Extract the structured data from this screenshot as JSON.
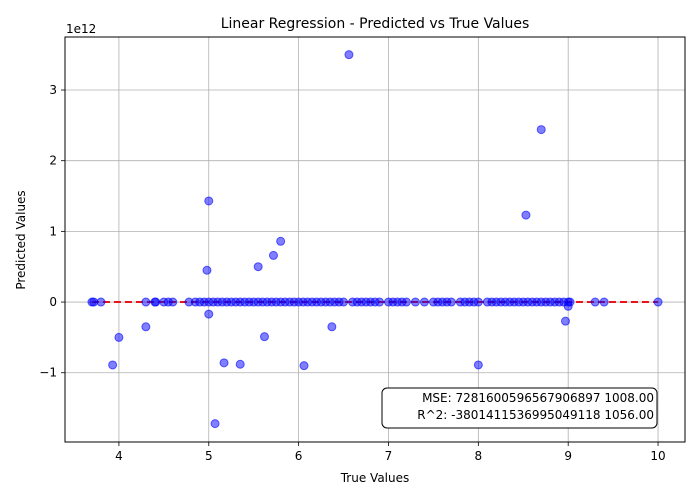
{
  "chart_data": {
    "type": "scatter",
    "title": "Linear Regression - Predicted vs True Values",
    "xlabel": "True Values",
    "ylabel": "Predicted Values",
    "y_offset_label": "1e12",
    "xlim": [
      3.4,
      10.3
    ],
    "ylim": [
      -1.98,
      3.75
    ],
    "x_ticks": [
      4,
      5,
      6,
      7,
      8,
      9,
      10
    ],
    "x_tick_labels": [
      "4",
      "5",
      "6",
      "7",
      "8",
      "9",
      "10"
    ],
    "y_ticks": [
      -1,
      0,
      1,
      2,
      3
    ],
    "y_tick_labels": [
      "−1",
      "0",
      "1",
      "2",
      "3"
    ],
    "grid": true,
    "point_color": "#0000ff",
    "reference_line_color": "#e8141b",
    "reference_line": {
      "x": [
        3.7,
        10.0
      ],
      "y": [
        0,
        0
      ]
    },
    "series": [
      {
        "points_outliers": [
          [
            6.56,
            3.5
          ],
          [
            8.7,
            2.44
          ],
          [
            8.53,
            1.23
          ],
          [
            5.0,
            1.43
          ],
          [
            5.8,
            0.86
          ],
          [
            5.72,
            0.66
          ],
          [
            5.55,
            0.5
          ],
          [
            4.98,
            0.45
          ],
          [
            5.0,
            -0.17
          ],
          [
            5.62,
            -0.49
          ],
          [
            4.0,
            -0.5
          ],
          [
            4.3,
            -0.35
          ],
          [
            6.37,
            -0.35
          ],
          [
            8.97,
            -0.27
          ],
          [
            9.0,
            -0.06
          ],
          [
            3.93,
            -0.89
          ],
          [
            5.17,
            -0.86
          ],
          [
            5.35,
            -0.88
          ],
          [
            6.06,
            -0.9
          ],
          [
            8.0,
            -0.89
          ],
          [
            5.07,
            -1.72
          ]
        ],
        "points_near_zero_x": [
          3.7,
          3.72,
          3.8,
          4.3,
          4.4,
          4.41,
          4.5,
          4.55,
          4.6,
          4.78,
          4.85,
          4.9,
          4.95,
          5.0,
          5.05,
          5.1,
          5.15,
          5.2,
          5.25,
          5.3,
          5.35,
          5.4,
          5.45,
          5.5,
          5.55,
          5.6,
          5.65,
          5.7,
          5.75,
          5.8,
          5.85,
          5.9,
          5.95,
          6.0,
          6.05,
          6.1,
          6.15,
          6.2,
          6.25,
          6.3,
          6.35,
          6.4,
          6.45,
          6.5,
          6.6,
          6.65,
          6.7,
          6.75,
          6.8,
          6.85,
          6.9,
          7.0,
          7.05,
          7.1,
          7.15,
          7.2,
          7.3,
          7.4,
          7.5,
          7.55,
          7.6,
          7.65,
          7.7,
          7.8,
          7.85,
          7.9,
          7.95,
          8.0,
          8.1,
          8.15,
          8.2,
          8.25,
          8.3,
          8.35,
          8.4,
          8.45,
          8.5,
          8.55,
          8.6,
          8.65,
          8.7,
          8.75,
          8.8,
          8.85,
          8.9,
          8.95,
          9.0,
          9.02,
          9.3,
          9.4,
          10.0
        ]
      }
    ],
    "annotation": {
      "lines": [
        "MSE: 7281600596567906897 1008.00",
        "R^2: -3801411536995049118 1056.00"
      ],
      "placement": "bottom-right"
    }
  }
}
